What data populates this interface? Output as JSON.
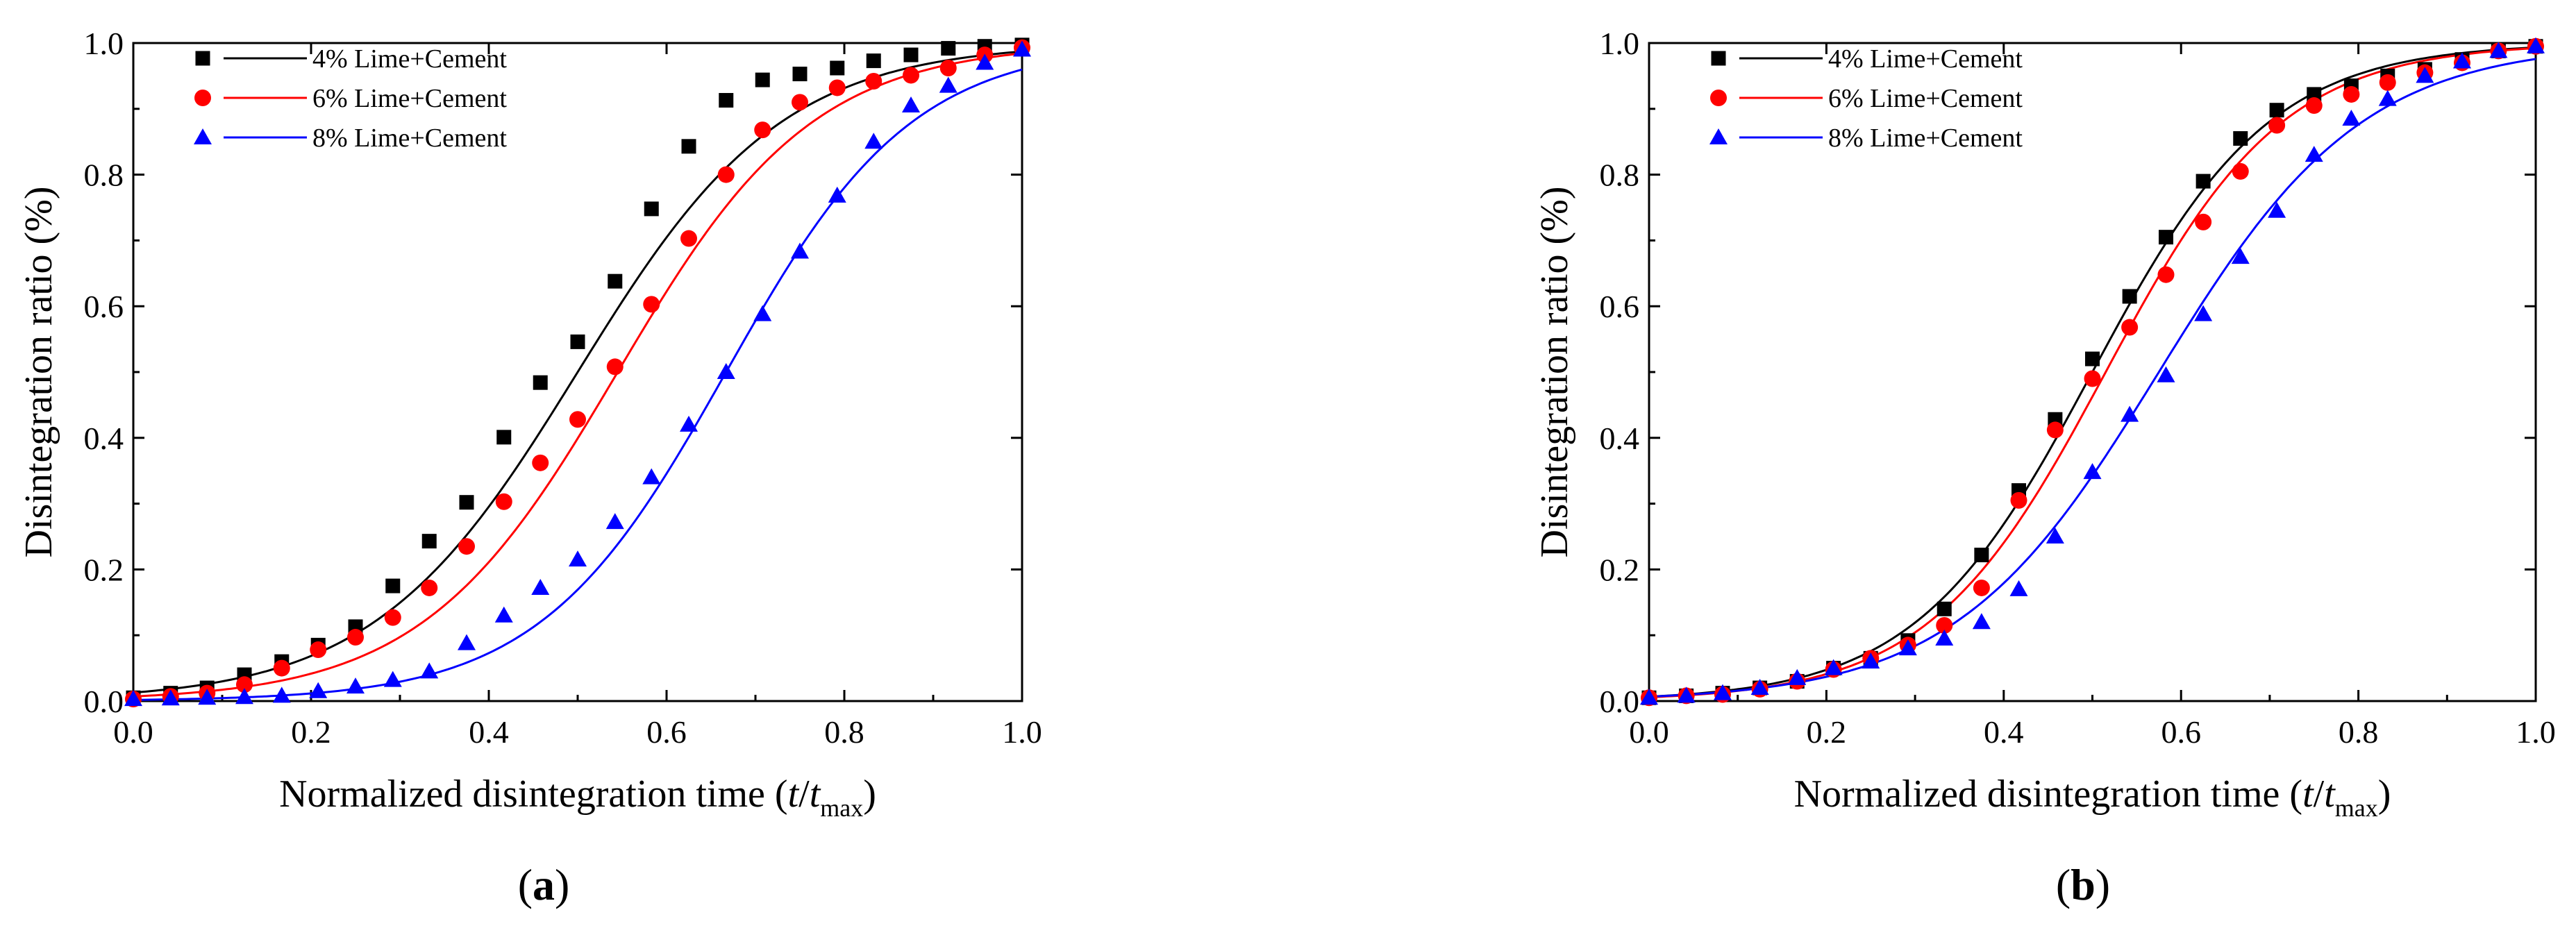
{
  "chart_data": [
    {
      "type": "scatter",
      "panel_label": "a",
      "title": "",
      "xlabel": "Normalized disintegration time (t/tmax)",
      "xlabel_parts": {
        "prefix": "Normalized disintegration time (",
        "t": "t",
        "slash": "/",
        "t2": "t",
        "sub": "max",
        "suffix": ")"
      },
      "ylabel": "Disintegration ratio (%)",
      "xlim": [
        0,
        1.0
      ],
      "ylim": [
        0,
        1.0
      ],
      "xticks": [
        "0.0",
        "0.2",
        "0.4",
        "0.6",
        "0.8",
        "1.0"
      ],
      "yticks": [
        "0.0",
        "0.2",
        "0.4",
        "0.6",
        "0.8",
        "1.0"
      ],
      "legend_position": "top-left",
      "series": [
        {
          "name": "4% Lime+Cement",
          "color": "#000000",
          "marker": "square",
          "x": [
            0,
            0.042,
            0.083,
            0.125,
            0.167,
            0.208,
            0.25,
            0.292,
            0.333,
            0.375,
            0.417,
            0.458,
            0.5,
            0.542,
            0.583,
            0.625,
            0.667,
            0.708,
            0.75,
            0.792,
            0.833,
            0.875,
            0.917,
            0.958,
            1.0
          ],
          "y": [
            0.005,
            0.012,
            0.02,
            0.04,
            0.06,
            0.085,
            0.113,
            0.175,
            0.243,
            0.302,
            0.401,
            0.484,
            0.546,
            0.638,
            0.748,
            0.843,
            0.913,
            0.944,
            0.953,
            0.962,
            0.973,
            0.982,
            0.992,
            0.995,
            0.997
          ],
          "fit": {
            "center": 0.5,
            "width": 0.115
          }
        },
        {
          "name": "6% Lime+Cement",
          "color": "#ff0000",
          "marker": "circle",
          "x": [
            0,
            0.042,
            0.083,
            0.125,
            0.167,
            0.208,
            0.25,
            0.292,
            0.333,
            0.375,
            0.417,
            0.458,
            0.5,
            0.542,
            0.583,
            0.625,
            0.667,
            0.708,
            0.75,
            0.792,
            0.833,
            0.875,
            0.917,
            0.958,
            1.0
          ],
          "y": [
            0.003,
            0.007,
            0.012,
            0.025,
            0.05,
            0.078,
            0.097,
            0.127,
            0.172,
            0.235,
            0.303,
            0.362,
            0.428,
            0.508,
            0.603,
            0.703,
            0.8,
            0.868,
            0.91,
            0.932,
            0.942,
            0.951,
            0.962,
            0.982,
            0.993
          ],
          "fit": {
            "center": 0.545,
            "width": 0.11
          }
        },
        {
          "name": "8% Lime+Cement",
          "color": "#0000ff",
          "marker": "triangle",
          "x": [
            0,
            0.042,
            0.083,
            0.125,
            0.167,
            0.208,
            0.25,
            0.292,
            0.333,
            0.375,
            0.417,
            0.458,
            0.5,
            0.542,
            0.583,
            0.625,
            0.667,
            0.708,
            0.75,
            0.792,
            0.833,
            0.875,
            0.917,
            0.958,
            1.0
          ],
          "y": [
            0.003,
            0.004,
            0.005,
            0.006,
            0.008,
            0.015,
            0.022,
            0.032,
            0.045,
            0.088,
            0.13,
            0.172,
            0.215,
            0.272,
            0.34,
            0.42,
            0.5,
            0.588,
            0.683,
            0.768,
            0.85,
            0.905,
            0.935,
            0.97,
            0.99
          ],
          "fit": {
            "center": 0.667,
            "width": 0.105
          }
        }
      ]
    },
    {
      "type": "scatter",
      "panel_label": "b",
      "title": "",
      "xlabel": "Normalized disintegration time (t/tmax)",
      "xlabel_parts": {
        "prefix": "Normalized disintegration time (",
        "t": "t",
        "slash": "/",
        "t2": "t",
        "sub": "max",
        "suffix": ")"
      },
      "ylabel": "Disintegration ratio (%)",
      "xlim": [
        0,
        1.0
      ],
      "ylim": [
        0,
        1.0
      ],
      "xticks": [
        "0.0",
        "0.2",
        "0.4",
        "0.6",
        "0.8",
        "1.0"
      ],
      "yticks": [
        "0.0",
        "0.2",
        "0.4",
        "0.6",
        "0.8",
        "1.0"
      ],
      "legend_position": "top-left",
      "series": [
        {
          "name": "4% Lime+Cement",
          "color": "#000000",
          "marker": "square",
          "x": [
            0,
            0.042,
            0.083,
            0.125,
            0.167,
            0.208,
            0.25,
            0.292,
            0.333,
            0.375,
            0.417,
            0.458,
            0.5,
            0.542,
            0.583,
            0.625,
            0.667,
            0.708,
            0.75,
            0.792,
            0.833,
            0.875,
            0.917,
            0.958,
            1.0
          ],
          "y": [
            0.005,
            0.008,
            0.012,
            0.02,
            0.03,
            0.05,
            0.065,
            0.092,
            0.14,
            0.222,
            0.32,
            0.428,
            0.52,
            0.615,
            0.705,
            0.79,
            0.855,
            0.898,
            0.922,
            0.935,
            0.95,
            0.96,
            0.975,
            0.988,
            0.995
          ],
          "fit": {
            "center": 0.5,
            "width": 0.1
          }
        },
        {
          "name": "6% Lime+Cement",
          "color": "#ff0000",
          "marker": "circle",
          "x": [
            0,
            0.042,
            0.083,
            0.125,
            0.167,
            0.208,
            0.25,
            0.292,
            0.333,
            0.375,
            0.417,
            0.458,
            0.5,
            0.542,
            0.583,
            0.625,
            0.667,
            0.708,
            0.75,
            0.792,
            0.833,
            0.875,
            0.917,
            0.958,
            1.0
          ],
          "y": [
            0.005,
            0.008,
            0.01,
            0.018,
            0.03,
            0.048,
            0.065,
            0.085,
            0.115,
            0.172,
            0.305,
            0.412,
            0.49,
            0.568,
            0.648,
            0.728,
            0.805,
            0.875,
            0.905,
            0.922,
            0.94,
            0.955,
            0.97,
            0.988,
            0.995
          ],
          "fit": {
            "center": 0.515,
            "width": 0.1
          }
        },
        {
          "name": "8% Lime+Cement",
          "color": "#0000ff",
          "marker": "triangle",
          "x": [
            0,
            0.042,
            0.083,
            0.125,
            0.167,
            0.208,
            0.25,
            0.292,
            0.333,
            0.375,
            0.417,
            0.458,
            0.5,
            0.542,
            0.583,
            0.625,
            0.667,
            0.708,
            0.75,
            0.792,
            0.833,
            0.875,
            0.917,
            0.958,
            1.0
          ],
          "y": [
            0.005,
            0.008,
            0.012,
            0.02,
            0.035,
            0.05,
            0.06,
            0.08,
            0.095,
            0.12,
            0.17,
            0.25,
            0.348,
            0.435,
            0.495,
            0.588,
            0.675,
            0.745,
            0.83,
            0.885,
            0.915,
            0.95,
            0.972,
            0.988,
            0.995
          ],
          "fit": {
            "center": 0.575,
            "width": 0.115
          }
        }
      ]
    }
  ]
}
